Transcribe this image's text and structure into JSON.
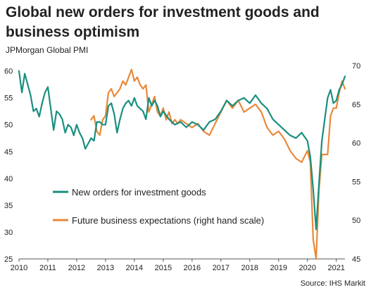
{
  "title": "Global new orders for investment goods and business optimism",
  "subtitle": "JPMorgan Global PMI",
  "source": "Source: IHS Markit",
  "chart_data": {
    "type": "line",
    "title": "Global new orders for investment goods and business optimism",
    "x_ticks": [
      "2010",
      "2011",
      "2012",
      "2013",
      "2014",
      "2015",
      "2016",
      "2017",
      "2018",
      "2019",
      "2020",
      "2021"
    ],
    "x_range": [
      2010.0,
      2021.3
    ],
    "y_left": {
      "ticks": [
        25,
        30,
        35,
        40,
        45,
        50,
        55,
        60
      ],
      "range": [
        25,
        61
      ]
    },
    "y_right": {
      "ticks": [
        45,
        50,
        55,
        60,
        65,
        70
      ],
      "range": [
        45,
        70
      ]
    },
    "grid": false,
    "legend": "center-left",
    "series": [
      {
        "name": "New orders for investment goods",
        "axis": "left",
        "color": "#1a8f7f",
        "x": [
          2010.0,
          2010.1,
          2010.2,
          2010.3,
          2010.4,
          2010.5,
          2010.6,
          2010.7,
          2010.8,
          2010.9,
          2011.0,
          2011.1,
          2011.2,
          2011.3,
          2011.4,
          2011.5,
          2011.6,
          2011.7,
          2011.8,
          2011.9,
          2012.0,
          2012.1,
          2012.2,
          2012.3,
          2012.4,
          2012.5,
          2012.6,
          2012.7,
          2012.8,
          2012.9,
          2013.0,
          2013.1,
          2013.2,
          2013.3,
          2013.4,
          2013.5,
          2013.6,
          2013.7,
          2013.8,
          2013.9,
          2014.0,
          2014.1,
          2014.2,
          2014.3,
          2014.4,
          2014.5,
          2014.6,
          2014.7,
          2014.8,
          2014.9,
          2015.0,
          2015.2,
          2015.4,
          2015.6,
          2015.8,
          2016.0,
          2016.2,
          2016.4,
          2016.6,
          2016.8,
          2017.0,
          2017.2,
          2017.4,
          2017.6,
          2017.8,
          2018.0,
          2018.2,
          2018.4,
          2018.6,
          2018.8,
          2019.0,
          2019.2,
          2019.4,
          2019.6,
          2019.8,
          2020.0,
          2020.1,
          2020.2,
          2020.3,
          2020.4,
          2020.5,
          2020.6,
          2020.7,
          2020.8,
          2020.9,
          2021.0,
          2021.1,
          2021.2,
          2021.3
        ],
        "values": [
          60.0,
          56.0,
          59.5,
          57.5,
          55.5,
          52.5,
          53.0,
          51.5,
          54.0,
          56.0,
          57.0,
          53.0,
          49.0,
          52.5,
          52.0,
          51.0,
          48.5,
          50.0,
          49.5,
          48.0,
          50.0,
          48.5,
          47.5,
          45.5,
          46.5,
          47.5,
          47.0,
          50.5,
          50.5,
          50.0,
          50.0,
          53.5,
          54.0,
          52.0,
          48.5,
          51.0,
          53.0,
          54.0,
          54.5,
          53.5,
          55.0,
          53.5,
          53.0,
          52.5,
          51.0,
          55.0,
          53.5,
          54.5,
          53.5,
          51.5,
          52.5,
          51.0,
          50.0,
          50.5,
          49.5,
          50.5,
          50.0,
          49.0,
          50.5,
          51.0,
          52.5,
          54.5,
          53.5,
          54.5,
          55.0,
          54.0,
          55.5,
          54.0,
          53.0,
          51.0,
          50.0,
          49.0,
          48.0,
          47.5,
          48.5,
          47.0,
          44.0,
          38.0,
          30.5,
          39.0,
          47.0,
          51.0,
          55.0,
          56.5,
          54.0,
          54.5,
          56.5,
          57.5,
          59.0
        ]
      },
      {
        "name": "Future business expectations (right hand scale)",
        "axis": "right",
        "color": "#e8893a",
        "x": [
          2012.5,
          2012.6,
          2012.7,
          2012.8,
          2012.9,
          2013.0,
          2013.1,
          2013.2,
          2013.3,
          2013.4,
          2013.5,
          2013.6,
          2013.7,
          2013.8,
          2013.9,
          2014.0,
          2014.1,
          2014.2,
          2014.3,
          2014.4,
          2014.5,
          2014.6,
          2014.7,
          2014.8,
          2014.9,
          2015.0,
          2015.1,
          2015.2,
          2015.3,
          2015.4,
          2015.5,
          2015.6,
          2015.8,
          2016.0,
          2016.2,
          2016.4,
          2016.6,
          2016.8,
          2017.0,
          2017.2,
          2017.4,
          2017.6,
          2017.8,
          2018.0,
          2018.2,
          2018.4,
          2018.6,
          2018.8,
          2019.0,
          2019.2,
          2019.4,
          2019.6,
          2019.8,
          2020.0,
          2020.1,
          2020.2,
          2020.3,
          2020.4,
          2020.5,
          2020.6,
          2020.7,
          2020.8,
          2020.9,
          2021.0,
          2021.1,
          2021.2,
          2021.3
        ],
        "values": [
          63.0,
          63.5,
          61.5,
          61.0,
          63.0,
          63.5,
          66.5,
          67.0,
          66.0,
          66.5,
          67.0,
          68.0,
          67.5,
          68.5,
          69.5,
          68.0,
          68.5,
          67.5,
          67.0,
          67.5,
          64.0,
          65.0,
          66.0,
          64.0,
          63.5,
          64.5,
          63.0,
          64.0,
          62.5,
          63.0,
          62.5,
          63.0,
          62.5,
          62.0,
          62.5,
          61.5,
          61.0,
          62.5,
          64.0,
          65.5,
          64.5,
          65.5,
          64.0,
          64.5,
          65.0,
          64.0,
          62.0,
          61.0,
          61.5,
          60.5,
          59.0,
          58.0,
          57.5,
          59.0,
          57.5,
          47.5,
          45.0,
          54.0,
          58.5,
          58.5,
          58.5,
          63.5,
          64.5,
          64.5,
          66.5,
          68.0,
          67.0
        ]
      }
    ]
  }
}
